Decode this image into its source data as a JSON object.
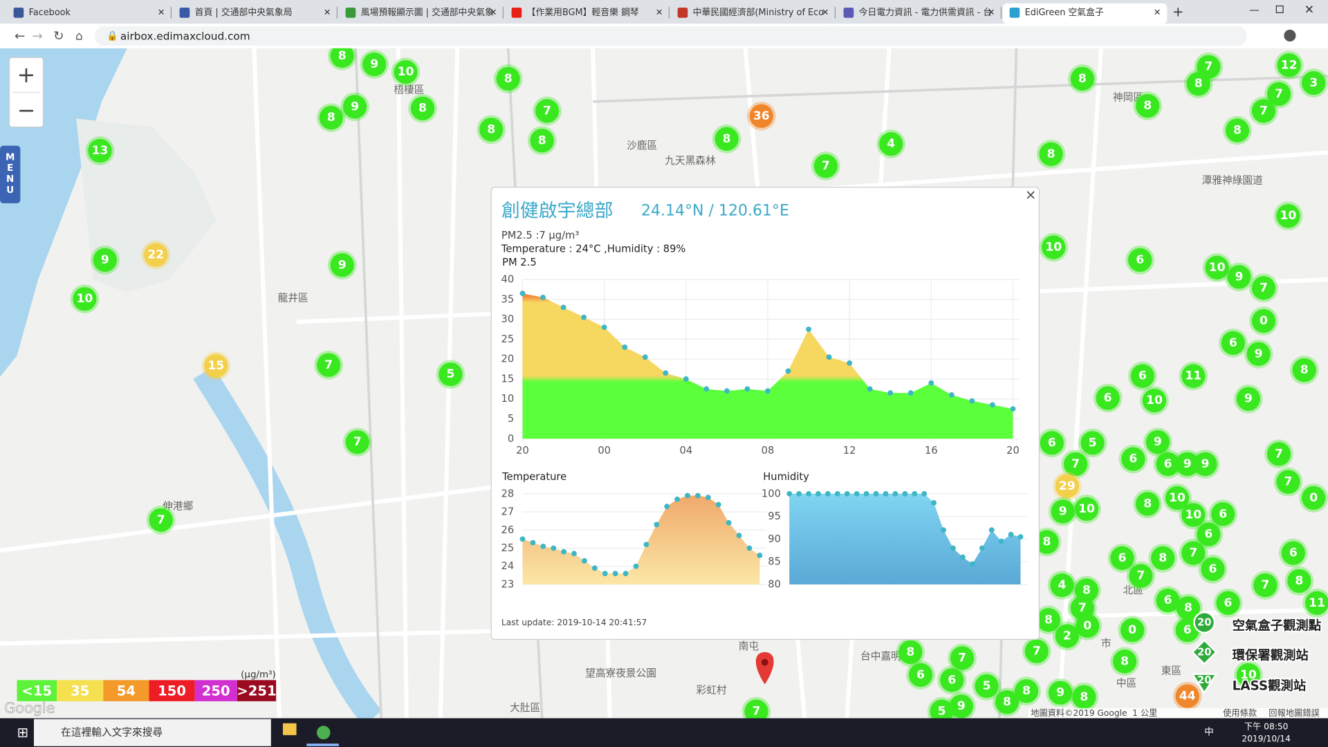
{
  "browser": {
    "tabs": [
      "Facebook",
      "首頁 | 交通部中央氣象局",
      "風場預報顯示圖 | 交通部中央氣象",
      "【作業用BGM】輕音樂 鋼琴",
      "中華民國經濟部(Ministry of Eco",
      "今日電力資訊 - 電力供需資訊 - 台",
      "EdiGreen 空氣盒子"
    ],
    "url": "airbox.edimaxcloud.com"
  },
  "map": {
    "menu": "MENU",
    "zoom_in": "+",
    "zoom_out": "−",
    "places": [
      "梧棲區",
      "沙鹿區",
      "九天黑森林",
      "龍井區",
      "伸港鄉",
      "大肚區",
      "望高寮夜景公園",
      "彩虹村",
      "神岡區",
      "潭雅神綠園道",
      "北區",
      "中區",
      "東區",
      "市",
      "南屯",
      "台中嘉明"
    ],
    "markers": [
      8,
      9,
      10,
      8,
      8,
      9,
      8,
      7,
      8,
      8,
      36,
      8,
      4,
      7,
      13,
      22,
      9,
      9,
      10,
      15,
      7,
      5,
      7,
      7,
      8,
      7,
      12,
      8,
      3,
      7,
      8,
      7,
      8,
      8,
      10,
      10,
      6,
      10,
      9,
      7,
      0,
      6,
      9,
      8,
      6,
      11,
      6,
      10,
      9,
      6,
      5,
      9,
      6,
      7,
      6,
      9,
      9,
      7,
      29,
      7,
      0,
      8,
      10,
      9,
      10,
      10,
      6,
      6,
      8,
      6,
      8,
      7,
      6,
      6,
      7,
      4,
      7,
      8,
      8,
      6,
      6,
      8,
      7,
      8,
      0,
      0,
      2,
      11,
      6,
      8,
      7,
      7,
      8,
      6,
      6,
      5,
      8,
      9,
      8,
      10,
      44,
      9,
      5,
      8,
      7
    ],
    "legend": {
      "unit": "(μg/m³)",
      "items": [
        {
          "label": "<15",
          "color": "#5cf33a"
        },
        {
          "label": "35",
          "color": "#f5e050"
        },
        {
          "label": "54",
          "color": "#f49a2a"
        },
        {
          "label": "150",
          "color": "#ee1c25"
        },
        {
          "label": "250",
          "color": "#d22fd0"
        },
        {
          "label": ">251",
          "color": "#9a0b1f"
        }
      ]
    },
    "layers": [
      "空氣盒子觀測點",
      "環保署觀測站",
      "LASS觀測站"
    ],
    "layer_badge": "20",
    "footer": [
      "地圖資料©2019 Google",
      "1 公里",
      "使用條款",
      "回報地圖錯誤"
    ],
    "logo": "Google"
  },
  "popup": {
    "close": "×",
    "title": "創健啟宇總部",
    "coords": "24.14°N / 120.61°E",
    "pm_line": "PM2.5 :7 μg/m³",
    "env_line": "Temperature : 24°C ,Humidity : 89%",
    "last_update": "Last update: 2019-10-14 20:41:57",
    "charts": [
      {
        "type": "area",
        "title": "PM 2.5",
        "x": [
          0,
          1,
          2,
          3,
          4,
          5,
          6,
          7,
          8,
          9,
          10,
          11,
          12,
          13,
          14,
          15,
          16,
          17,
          18,
          19,
          20,
          21,
          22,
          23,
          24
        ],
        "values": [
          36.5,
          35.5,
          33,
          30.5,
          28,
          23,
          20.5,
          16.5,
          15,
          12.5,
          12,
          12.5,
          12,
          17,
          27.5,
          20.5,
          19,
          12.5,
          11.5,
          11.5,
          14,
          11,
          9.5,
          8.5,
          7.5
        ],
        "xlim": [
          0,
          24
        ],
        "xticks": [
          {
            "value": 0,
            "label": "20"
          },
          {
            "value": 4,
            "label": "00"
          },
          {
            "value": 8,
            "label": "04"
          },
          {
            "value": 12,
            "label": "08"
          },
          {
            "value": 16,
            "label": "12"
          },
          {
            "value": 20,
            "label": "16"
          },
          {
            "value": 24,
            "label": "20"
          }
        ],
        "ylim": [
          0,
          40
        ],
        "yticks": [
          0,
          5,
          10,
          15,
          20,
          25,
          30,
          35,
          40
        ],
        "zones": [
          {
            "to": 15,
            "color": "#5cff3c"
          },
          {
            "to": 35,
            "color": "#f6d760"
          },
          {
            "color": "#f28a3a"
          }
        ],
        "point_color": "#3fb6c6"
      },
      {
        "type": "area",
        "title": "Temperature",
        "values": [
          25.5,
          25.3,
          25.1,
          25,
          24.8,
          24.7,
          24.3,
          23.9,
          23.6,
          23.6,
          23.6,
          24,
          25.2,
          26.3,
          27.3,
          27.7,
          27.9,
          27.9,
          27.8,
          27.4,
          26.4,
          25.7,
          25,
          24.6
        ],
        "ylim": [
          23,
          28
        ],
        "yticks": [
          23,
          24,
          25,
          26,
          27,
          28
        ],
        "fill_top": "#efa86a",
        "fill_bottom": "#fbe7a6",
        "point_color": "#3fb6c6"
      },
      {
        "type": "area",
        "title": "Humidity",
        "values": [
          100,
          100,
          100,
          100,
          100,
          100,
          100,
          100,
          100,
          100,
          100,
          100,
          100,
          100,
          100,
          98,
          92,
          88,
          86,
          84.5,
          88,
          92,
          89.5,
          91,
          90.5
        ],
        "ylim": [
          80,
          100
        ],
        "yticks": [
          80,
          85,
          90,
          95,
          100
        ],
        "fill_top": "#80d5f2",
        "fill_bottom": "#5aa8d6",
        "point_color": "#3fb6c6"
      }
    ]
  },
  "taskbar": {
    "search": "在這裡輸入文字來搜尋",
    "time": "下午 08:50",
    "date": "2019/10/14",
    "ime": "中"
  }
}
